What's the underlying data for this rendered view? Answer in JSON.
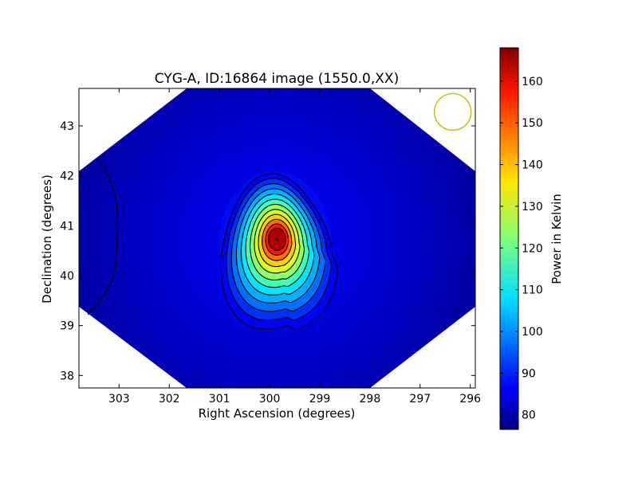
{
  "chart_data": {
    "type": "heatmap",
    "title": "CYG-A, ID:16864 image (1550.0,XX)",
    "xlabel": "Right Ascension (degrees)",
    "ylabel": "Declination (degrees)",
    "xlim": [
      303.8,
      295.9
    ],
    "ylim": [
      37.75,
      43.75
    ],
    "xticks": [
      303,
      302,
      301,
      300,
      299,
      298,
      297,
      296
    ],
    "yticks": [
      38,
      39,
      40,
      41,
      42,
      43
    ],
    "colorbar": {
      "label": "Power in Kelvin",
      "range": [
        76.5,
        168
      ],
      "ticks": [
        80,
        90,
        100,
        110,
        120,
        130,
        140,
        150,
        160
      ],
      "colormap": "jet"
    },
    "source": {
      "name": "CYG-A",
      "ra": 299.85,
      "dec": 40.73,
      "peak_kelvin": 168
    },
    "beam_marker": {
      "ra": 296.35,
      "dec": 43.28,
      "color": "#bfbf00"
    },
    "contour_levels_count": 11,
    "colors": {
      "background_min": "#00008f",
      "peak": "#8b0000"
    }
  }
}
